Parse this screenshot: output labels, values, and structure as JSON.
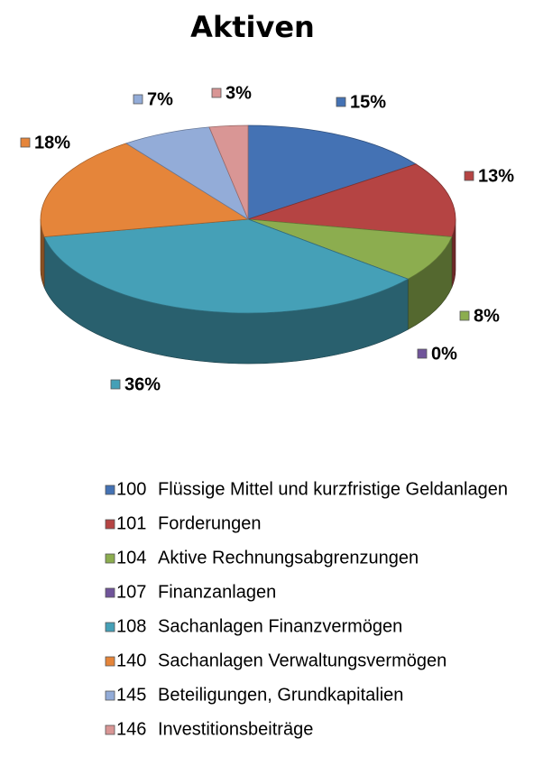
{
  "chart_data": {
    "type": "pie3d",
    "title": "Aktiven",
    "codes": [
      "100",
      "101",
      "104",
      "107",
      "108",
      "140",
      "145",
      "146"
    ],
    "categories": [
      "Flüssige Mittel und kurzfristige Geldanlagen",
      "Forderungen",
      "Aktive Rechnungsabgrenzungen",
      "Finanzanlagen",
      "Sachanlagen Finanzvermögen",
      "Sachanlagen Verwaltungsvermögen",
      "Beteiligungen, Grundkapitalien",
      "Investitionsbeiträge"
    ],
    "values": [
      15,
      13,
      8,
      0,
      36,
      18,
      7,
      3
    ],
    "value_labels": [
      "15%",
      "13%",
      "8%",
      "0%",
      "36%",
      "18%",
      "7%",
      "3%"
    ],
    "colors": [
      "#4472b4",
      "#b54443",
      "#8cad4f",
      "#70549a",
      "#45a0b7",
      "#e5853a",
      "#93acd8",
      "#d99695"
    ],
    "legend": "bottom"
  }
}
